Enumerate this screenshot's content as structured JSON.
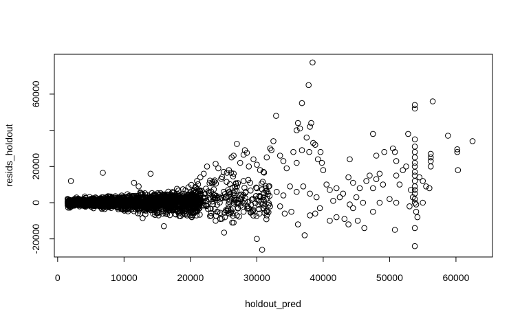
{
  "chart_data": {
    "type": "scatter",
    "title": "",
    "xlabel": "holdout_pred",
    "ylabel": "resids_holdout",
    "xlim": [
      -500,
      65500
    ],
    "ylim": [
      -30000,
      82000
    ],
    "x_ticks": [
      0,
      10000,
      20000,
      30000,
      40000,
      50000,
      60000
    ],
    "x_tick_labels": [
      "0",
      "10000",
      "20000",
      "30000",
      "40000",
      "50000",
      "60000"
    ],
    "y_ticks": [
      -20000,
      0,
      20000,
      40000,
      60000
    ],
    "y_tick_labels": [
      "-20000",
      "0",
      "20000",
      "",
      "60000"
    ],
    "grid": false,
    "marker": "open-circle",
    "series": [
      {
        "points": [
          [
            2000,
            12000
          ],
          [
            6800,
            16500
          ],
          [
            14000,
            16000
          ],
          [
            11500,
            11000
          ],
          [
            12200,
            9000
          ],
          [
            16000,
            -13000
          ],
          [
            12800,
            -8500
          ],
          [
            15200,
            -7000
          ],
          [
            17800,
            -6500
          ],
          [
            19500,
            -7000
          ],
          [
            20200,
            -8000
          ],
          [
            21000,
            12000
          ],
          [
            21500,
            14000
          ],
          [
            22000,
            16000
          ],
          [
            22500,
            20000
          ],
          [
            23800,
            21500
          ],
          [
            24200,
            19000
          ],
          [
            25000,
            17000
          ],
          [
            25500,
            16500
          ],
          [
            25800,
            18000
          ],
          [
            26200,
            25000
          ],
          [
            26500,
            26000
          ],
          [
            27000,
            32500
          ],
          [
            27500,
            22000
          ],
          [
            28000,
            26500
          ],
          [
            28200,
            29000
          ],
          [
            28500,
            27500
          ],
          [
            28800,
            20000
          ],
          [
            29500,
            24000
          ],
          [
            30000,
            21000
          ],
          [
            30500,
            18000
          ],
          [
            31000,
            17000
          ],
          [
            31500,
            25000
          ],
          [
            32000,
            30000
          ],
          [
            32200,
            29000
          ],
          [
            32500,
            34000
          ],
          [
            32900,
            48000
          ],
          [
            33500,
            26000
          ],
          [
            34000,
            23000
          ],
          [
            34500,
            19000
          ],
          [
            35500,
            28000
          ],
          [
            36000,
            22000
          ],
          [
            36000,
            40000
          ],
          [
            36200,
            44000
          ],
          [
            36500,
            41000
          ],
          [
            36800,
            55000
          ],
          [
            37500,
            36000
          ],
          [
            37800,
            65000
          ],
          [
            38000,
            42000
          ],
          [
            38200,
            44000
          ],
          [
            38400,
            77500
          ],
          [
            38500,
            33000
          ],
          [
            38800,
            32000
          ],
          [
            39200,
            24000
          ],
          [
            39800,
            22000
          ],
          [
            40000,
            18000
          ],
          [
            39600,
            28000
          ],
          [
            37900,
            28000
          ],
          [
            36800,
            29000
          ],
          [
            23800,
            -10000
          ],
          [
            24500,
            -9000
          ],
          [
            25200,
            -8000
          ],
          [
            26000,
            -6000
          ],
          [
            26500,
            -11000
          ],
          [
            27000,
            -7000
          ],
          [
            28000,
            -5000
          ],
          [
            28800,
            -3000
          ],
          [
            29500,
            -4000
          ],
          [
            30000,
            -20000
          ],
          [
            30800,
            -26000
          ],
          [
            31500,
            -7000
          ],
          [
            32000,
            -2000
          ],
          [
            33500,
            -2000
          ],
          [
            34200,
            -6000
          ],
          [
            35200,
            -5000
          ],
          [
            36200,
            -12000
          ],
          [
            37200,
            -18000
          ],
          [
            38000,
            -7000
          ],
          [
            38800,
            -6000
          ],
          [
            39500,
            -3000
          ],
          [
            41000,
            -10000
          ],
          [
            42000,
            -8000
          ],
          [
            43200,
            -9000
          ],
          [
            43800,
            -12000
          ],
          [
            44500,
            -3000
          ],
          [
            45200,
            -10000
          ],
          [
            46200,
            -14000
          ],
          [
            47500,
            -5000
          ],
          [
            50800,
            -15000
          ],
          [
            53800,
            -24000
          ],
          [
            53800,
            -14000
          ],
          [
            54200,
            -8000
          ],
          [
            53000,
            -2000
          ],
          [
            54000,
            -5000
          ],
          [
            55000,
            0
          ],
          [
            41000,
            7000
          ],
          [
            42000,
            8000
          ],
          [
            42500,
            3000
          ],
          [
            43000,
            5000
          ],
          [
            43800,
            14000
          ],
          [
            44000,
            24000
          ],
          [
            44500,
            11000
          ],
          [
            45000,
            3000
          ],
          [
            45500,
            8000
          ],
          [
            46500,
            12000
          ],
          [
            47000,
            15000
          ],
          [
            47500,
            8000
          ],
          [
            48000,
            13000
          ],
          [
            48500,
            16000
          ],
          [
            48000,
            26000
          ],
          [
            47500,
            38000
          ],
          [
            49200,
            28000
          ],
          [
            49000,
            10000
          ],
          [
            50000,
            2000
          ],
          [
            50500,
            30000
          ],
          [
            50800,
            28000
          ],
          [
            51000,
            23000
          ],
          [
            51000,
            15000
          ],
          [
            51500,
            10000
          ],
          [
            52000,
            18000
          ],
          [
            52500,
            20000
          ],
          [
            52800,
            38000
          ],
          [
            53200,
            7000
          ],
          [
            53500,
            3000
          ],
          [
            53800,
            52000
          ],
          [
            53800,
            54000
          ],
          [
            53800,
            35000
          ],
          [
            53800,
            31000
          ],
          [
            53800,
            28000
          ],
          [
            53800,
            25000
          ],
          [
            53800,
            22000
          ],
          [
            53800,
            20000
          ],
          [
            53800,
            17000
          ],
          [
            53800,
            15000
          ],
          [
            53800,
            12000
          ],
          [
            53800,
            9000
          ],
          [
            53800,
            7000
          ],
          [
            53800,
            5000
          ],
          [
            53800,
            2000
          ],
          [
            53800,
            0
          ],
          [
            54000,
            -1000
          ],
          [
            54500,
            14000
          ],
          [
            55000,
            12000
          ],
          [
            55500,
            9000
          ],
          [
            56000,
            8000
          ],
          [
            56200,
            20000
          ],
          [
            56200,
            23000
          ],
          [
            56200,
            25000
          ],
          [
            56200,
            27000
          ],
          [
            56500,
            56000
          ],
          [
            58800,
            37000
          ],
          [
            60200,
            28000
          ],
          [
            60200,
            29500
          ],
          [
            60300,
            18000
          ],
          [
            62500,
            34000
          ],
          [
            39000,
            3000
          ],
          [
            40500,
            10000
          ],
          [
            41500,
            1000
          ],
          [
            44000,
            -1000
          ],
          [
            46000,
            0
          ],
          [
            48500,
            0
          ],
          [
            51000,
            0
          ],
          [
            33000,
            6000
          ],
          [
            34000,
            4000
          ],
          [
            35000,
            9000
          ],
          [
            36000,
            6000
          ],
          [
            37000,
            9000
          ],
          [
            38000,
            5000
          ],
          [
            31000,
            3000
          ],
          [
            30000,
            8000
          ],
          [
            29000,
            11000
          ],
          [
            28000,
            12000
          ],
          [
            27000,
            9000
          ],
          [
            26000,
            5000
          ]
        ]
      }
    ]
  }
}
